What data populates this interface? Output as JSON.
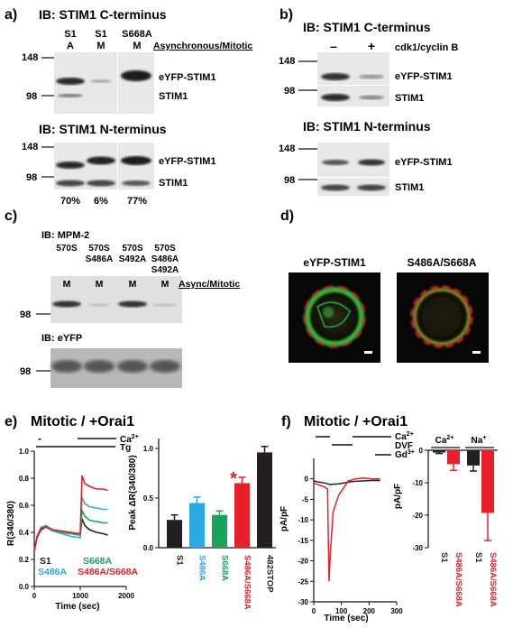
{
  "panel_a": {
    "letter": "a)",
    "top_title": "IB: STIM1 C-terminus",
    "col_headers": [
      {
        "line1": "S1",
        "line2": "A"
      },
      {
        "line1": "S1",
        "line2": "M"
      },
      {
        "line1": "S668A",
        "line2": "M"
      }
    ],
    "async_mitotic_label": "Asynchronous/Mitotic",
    "mw_top": [
      "148",
      "98"
    ],
    "band_labels": [
      "eYFP-STIM1",
      "STIM1"
    ],
    "bottom_title": "IB: STIM1 N-terminus",
    "mw_bottom": [
      "148",
      "98"
    ],
    "percents": [
      "70%",
      "6%",
      "77%"
    ]
  },
  "panel_b": {
    "letter": "b)",
    "top_title": "IB: STIM1 C-terminus",
    "signs": [
      "–",
      "+"
    ],
    "treatment": "cdk1/cyclin B",
    "mw_top": [
      "148",
      "98"
    ],
    "band_labels": [
      "eYFP-STIM1",
      "STIM1"
    ],
    "bottom_title": "IB: STIM1 N-terminus",
    "mw_bottom": [
      "148",
      "98"
    ]
  },
  "panel_c": {
    "letter": "c)",
    "title": "IB: MPM-2",
    "lanes": [
      [
        "570S"
      ],
      [
        "570S",
        "S486A"
      ],
      [
        "570S",
        "S492A"
      ],
      [
        "570S",
        "S486A",
        "S492A"
      ]
    ],
    "m_labels": [
      "M",
      "M",
      "M",
      "M"
    ],
    "async_label": "Async/Mitotic",
    "mw1": "98",
    "bottom_title": "IB: eYFP",
    "mw2": "98"
  },
  "panel_d": {
    "letter": "d)",
    "labels": [
      "eYFP-STIM1",
      "S486A/S668A"
    ]
  },
  "panel_e": {
    "letter": "e)",
    "title": "Mitotic / +Orai1",
    "trace": {
      "minus": "-",
      "ca": "Ca",
      "ca_sup": "2+",
      "tg": "Tg",
      "ylabel": "R(340/380)",
      "xlabel": "Time (sec)",
      "yticks": [
        "0.0",
        "0.2",
        "0.4",
        "0.6",
        "0.8",
        "1.0"
      ],
      "xticks": [
        "0",
        "1000",
        "2000"
      ],
      "legend": [
        "S1",
        "S668A",
        "S486A",
        "S486A/S668A"
      ]
    },
    "bar": {
      "ylabel": "Peak ΔR(340/380)",
      "yticks": [
        "0.0",
        "0.5",
        "1.0"
      ],
      "star": "*"
    }
  },
  "panel_f": {
    "letter": "f)",
    "title": "Mitotic / +Orai1",
    "trace": {
      "ca": "Ca",
      "ca_sup": "2+",
      "dvf": "DVF",
      "gd": "Gd",
      "gd_sup": "3+",
      "ylabel": "pA/pF",
      "xlabel": "Time (sec)",
      "yticks": [
        "0",
        "-5",
        "-10",
        "-15",
        "-20",
        "-25",
        "-30"
      ],
      "xticks": [
        "0",
        "100",
        "200",
        "300"
      ]
    },
    "bar": {
      "ylabel": "pA/pF",
      "yticks": [
        "0",
        "-10",
        "-20",
        "-30"
      ],
      "group_labels": [
        "Ca",
        "Na"
      ],
      "group_sups": [
        "2+",
        "+"
      ]
    }
  },
  "colors": {
    "black": "#231f20",
    "blue": "#29abe2",
    "green": "#1aa35c",
    "red": "#e8202a"
  },
  "chart_data": [
    {
      "type": "bar",
      "categories": [
        "S1",
        "S486A",
        "S668A",
        "S486A/S668A",
        "482STOP"
      ],
      "values": [
        0.28,
        0.45,
        0.33,
        0.65,
        0.96
      ],
      "errors": [
        0.05,
        0.06,
        0.04,
        0.06,
        0.06
      ],
      "colors": [
        "#231f20",
        "#29abe2",
        "#1aa35c",
        "#e8202a",
        "#231f20"
      ],
      "ylabel": "Peak ΔR(340/380)",
      "ylim": [
        0,
        1.1
      ]
    },
    {
      "type": "bar",
      "categories": [
        "S1",
        "S486A/S668A",
        "S1",
        "S486A/S668A"
      ],
      "values": [
        -0.7,
        -4.3,
        -4.7,
        -19.3
      ],
      "errors": [
        0.3,
        1.9,
        1.7,
        8.5
      ],
      "colors": [
        "#231f20",
        "#e8202a",
        "#231f20",
        "#e8202a"
      ],
      "ylabel": "pA/pF",
      "ylim": [
        0,
        -30
      ]
    },
    {
      "type": "line",
      "xlabel": "Time (sec)",
      "ylabel": "R(340/380)",
      "ylim": [
        0,
        1.0
      ],
      "xlim": [
        0,
        2000
      ],
      "x": [
        0,
        60,
        150,
        250,
        400,
        600,
        800,
        1000,
        1040,
        1100,
        1200,
        1350,
        1500,
        1600
      ],
      "series": [
        {
          "name": "S1",
          "color": "#231f20",
          "values": [
            0.26,
            0.36,
            0.42,
            0.44,
            0.41,
            0.4,
            0.39,
            0.38,
            0.5,
            0.45,
            0.42,
            0.4,
            0.39,
            0.38
          ]
        },
        {
          "name": "S486A",
          "color": "#29abe2",
          "values": [
            0.26,
            0.37,
            0.44,
            0.44,
            0.41,
            0.39,
            0.37,
            0.36,
            0.66,
            0.61,
            0.59,
            0.58,
            0.57,
            0.57
          ]
        },
        {
          "name": "S668A",
          "color": "#1aa35c",
          "values": [
            0.26,
            0.36,
            0.43,
            0.45,
            0.42,
            0.4,
            0.39,
            0.38,
            0.56,
            0.52,
            0.49,
            0.48,
            0.47,
            0.47
          ]
        },
        {
          "name": "S486A/S668A",
          "color": "#e8202a",
          "values": [
            0.26,
            0.37,
            0.43,
            0.44,
            0.42,
            0.41,
            0.4,
            0.39,
            0.82,
            0.76,
            0.74,
            0.72,
            0.72,
            0.71
          ]
        }
      ]
    },
    {
      "type": "line",
      "xlabel": "Time (sec)",
      "ylabel": "pA/pF",
      "ylim": [
        -30,
        5
      ],
      "xlim": [
        0,
        300
      ],
      "x": [
        0,
        20,
        40,
        50,
        55,
        60,
        70,
        90,
        110,
        125,
        150,
        180,
        210,
        240
      ],
      "series": [
        {
          "color": "#231f20",
          "values": [
            -0.5,
            -0.8,
            -1.0,
            -1.2,
            -1.3,
            -1.4,
            -1.3,
            -1.2,
            -1.0,
            -0.8,
            -0.6,
            -0.5,
            -0.4,
            -0.4
          ]
        },
        {
          "color": "#e8202a",
          "values": [
            -1.0,
            -1.5,
            -2.0,
            -2.5,
            -25.0,
            -18.0,
            -8.0,
            -4.0,
            -2.0,
            -0.5,
            0.0,
            0.2,
            0.0,
            0.0
          ]
        }
      ]
    }
  ]
}
